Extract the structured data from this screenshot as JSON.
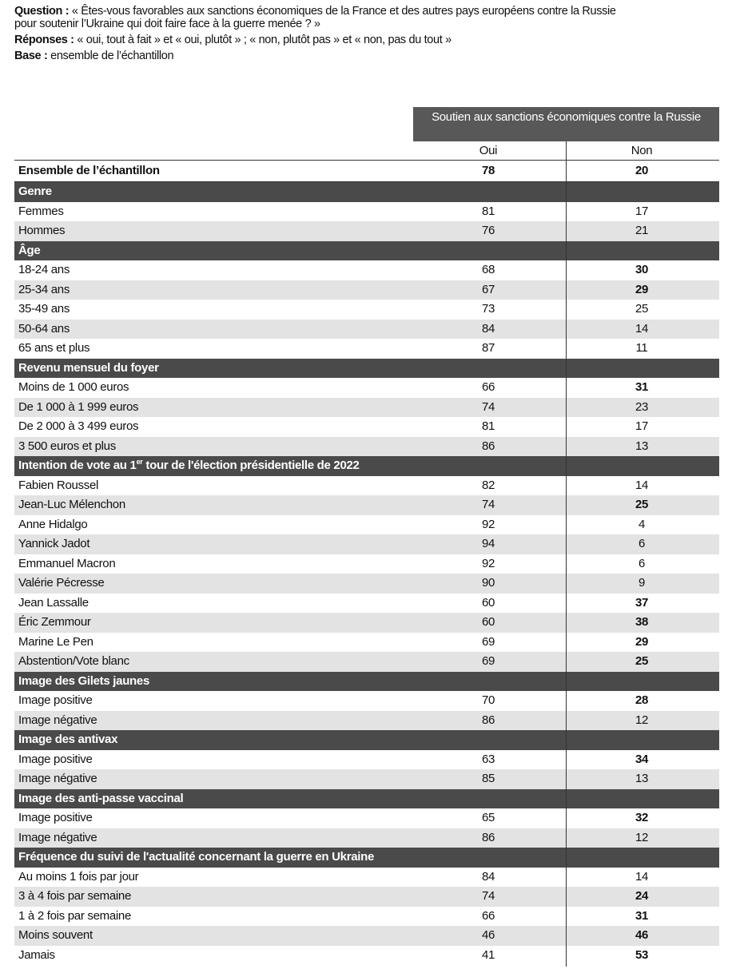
{
  "header": {
    "question_label": "Question :",
    "question_lines": [
      "« Êtes-vous favorables aux sanctions économiques de la France et des autres pays européens contre la Russie",
      "pour soutenir l’Ukraine qui doit faire face à la guerre menée ? »"
    ],
    "answers_label": "Réponses :",
    "answers": "« oui, tout à fait » et « oui, plutôt » ; « non, plutôt pas » et « non, pas du tout »",
    "base_label": "Base :",
    "base": "ensemble de l’échantillon"
  },
  "table": {
    "group_header": "Soutien aux sanctions économiques contre la Russie",
    "columns": [
      "Oui",
      "Non"
    ],
    "total": {
      "label": "Ensemble de l’échantillon",
      "values": [
        78,
        20
      ]
    },
    "sections": [
      {
        "title": "Genre",
        "rows": [
          {
            "label": "Femmes",
            "values": [
              81,
              17
            ]
          },
          {
            "label": "Hommes",
            "values": [
              76,
              21
            ]
          }
        ]
      },
      {
        "title": "Âge",
        "rows": [
          {
            "label": "18-24 ans",
            "values": [
              68,
              30
            ],
            "non_bold": true
          },
          {
            "label": "25-34 ans",
            "values": [
              67,
              29
            ],
            "non_bold": true
          },
          {
            "label": "35-49 ans",
            "values": [
              73,
              25
            ]
          },
          {
            "label": "50-64 ans",
            "values": [
              84,
              14
            ]
          },
          {
            "label": "65 ans et plus",
            "values": [
              87,
              11
            ]
          }
        ]
      },
      {
        "title": "Revenu mensuel du foyer",
        "rows": [
          {
            "label": "Moins de 1 000 euros",
            "values": [
              66,
              31
            ],
            "non_bold": true
          },
          {
            "label": "De 1 000 à 1 999 euros",
            "values": [
              74,
              23
            ]
          },
          {
            "label": "De 2 000 à 3 499 euros",
            "values": [
              81,
              17
            ]
          },
          {
            "label": "3 500 euros et plus",
            "values": [
              86,
              13
            ]
          }
        ]
      },
      {
        "title": "Intention de vote au 1",
        "title_sup": "er",
        "title_rest": " tour de l'élection présidentielle de 2022",
        "rows": [
          {
            "label": "Fabien Roussel",
            "values": [
              82,
              14
            ]
          },
          {
            "label": "Jean-Luc Mélenchon",
            "values": [
              74,
              25
            ],
            "non_bold": true
          },
          {
            "label": "Anne Hidalgo",
            "values": [
              92,
              4
            ]
          },
          {
            "label": "Yannick Jadot",
            "values": [
              94,
              6
            ]
          },
          {
            "label": "Emmanuel Macron",
            "values": [
              92,
              6
            ]
          },
          {
            "label": "Valérie Pécresse",
            "values": [
              90,
              9
            ]
          },
          {
            "label": "Jean Lassalle",
            "values": [
              60,
              37
            ],
            "non_bold": true
          },
          {
            "label": "Éric Zemmour",
            "values": [
              60,
              38
            ],
            "non_bold": true
          },
          {
            "label": "Marine Le Pen",
            "values": [
              69,
              29
            ],
            "non_bold": true
          },
          {
            "label": "Abstention/Vote blanc",
            "values": [
              69,
              25
            ],
            "non_bold": true
          }
        ]
      },
      {
        "title": "Image des Gilets jaunes",
        "rows": [
          {
            "label": "Image positive",
            "values": [
              70,
              28
            ],
            "non_bold": true
          },
          {
            "label": "Image négative",
            "values": [
              86,
              12
            ]
          }
        ]
      },
      {
        "title": "Image des antivax",
        "rows": [
          {
            "label": "Image positive",
            "values": [
              63,
              34
            ],
            "non_bold": true
          },
          {
            "label": "Image négative",
            "values": [
              85,
              13
            ]
          }
        ]
      },
      {
        "title": "Image des anti-passe vaccinal",
        "rows": [
          {
            "label": "Image positive",
            "values": [
              65,
              32
            ],
            "non_bold": true
          },
          {
            "label": "Image négative",
            "values": [
              86,
              12
            ]
          }
        ]
      },
      {
        "title": "Fréquence du suivi de l'actualité concernant la guerre en Ukraine",
        "rows": [
          {
            "label": "Au moins 1 fois par jour",
            "values": [
              84,
              14
            ]
          },
          {
            "label": "3 à 4 fois par semaine",
            "values": [
              74,
              24
            ],
            "non_bold": true
          },
          {
            "label": "1 à 2 fois par semaine",
            "values": [
              66,
              31
            ],
            "non_bold": true
          },
          {
            "label": "Moins souvent",
            "values": [
              46,
              46
            ],
            "non_bold": true
          },
          {
            "label": "Jamais",
            "values": [
              41,
              53
            ],
            "non_bold": true
          }
        ]
      }
    ]
  }
}
